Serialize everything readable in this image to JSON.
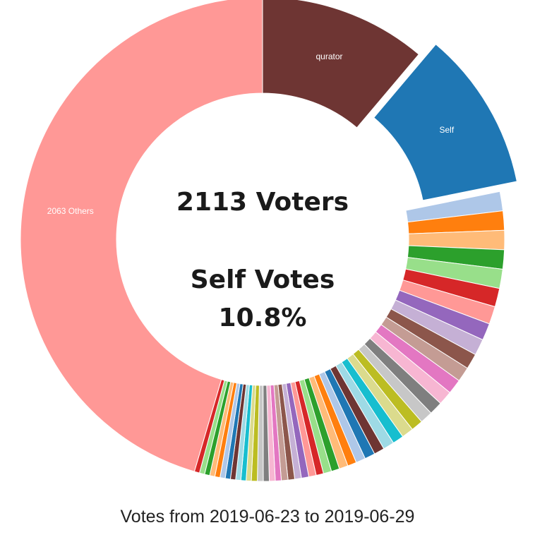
{
  "center": {
    "voters_text": "2113 Voters",
    "self_title": "Self Votes",
    "self_percent": "10.8%"
  },
  "footer": {
    "text": "Votes from 2019-06-23 to 2019-06-29"
  },
  "chart_data": {
    "type": "pie",
    "style": "donut",
    "labels": [
      "qurator",
      "Self",
      "2063 Others"
    ],
    "values": [
      {
        "label": "2063 Others",
        "value": 46.0,
        "color": "#ff9896"
      },
      {
        "label": "qurator",
        "value": 11.3,
        "color": "#6e3533"
      },
      {
        "label": "Self",
        "value": 10.8,
        "color": "#1f77b4",
        "offset": true
      }
    ],
    "small_slices": [
      {
        "value": 1.3,
        "color": "#aec7e8"
      },
      {
        "value": 1.3,
        "color": "#ff7f0e"
      },
      {
        "value": 1.3,
        "color": "#ffbb78"
      },
      {
        "value": 1.3,
        "color": "#2ca02c"
      },
      {
        "value": 1.3,
        "color": "#98df8a"
      },
      {
        "value": 1.25,
        "color": "#d62728"
      },
      {
        "value": 1.2,
        "color": "#ff9896"
      },
      {
        "value": 1.15,
        "color": "#9467bd"
      },
      {
        "value": 1.1,
        "color": "#c5b0d5"
      },
      {
        "value": 1.05,
        "color": "#8c564b"
      },
      {
        "value": 1.0,
        "color": "#c49c94"
      },
      {
        "value": 1.0,
        "color": "#e377c2"
      },
      {
        "value": 0.95,
        "color": "#f7b6d2"
      },
      {
        "value": 0.9,
        "color": "#7f7f7f"
      },
      {
        "value": 0.85,
        "color": "#c7c7c7"
      },
      {
        "value": 0.8,
        "color": "#bcbd22"
      },
      {
        "value": 0.8,
        "color": "#dbdb8d"
      },
      {
        "value": 0.75,
        "color": "#17becf"
      },
      {
        "value": 0.75,
        "color": "#9edae5"
      },
      {
        "value": 0.7,
        "color": "#6e3533"
      },
      {
        "value": 0.7,
        "color": "#1f77b4"
      },
      {
        "value": 0.65,
        "color": "#aec7e8"
      },
      {
        "value": 0.6,
        "color": "#ff7f0e"
      },
      {
        "value": 0.6,
        "color": "#ffbb78"
      },
      {
        "value": 0.55,
        "color": "#2ca02c"
      },
      {
        "value": 0.55,
        "color": "#98df8a"
      },
      {
        "value": 0.5,
        "color": "#d62728"
      },
      {
        "value": 0.5,
        "color": "#ff9896"
      },
      {
        "value": 0.5,
        "color": "#9467bd"
      },
      {
        "value": 0.45,
        "color": "#c5b0d5"
      },
      {
        "value": 0.45,
        "color": "#8c564b"
      },
      {
        "value": 0.45,
        "color": "#c49c94"
      },
      {
        "value": 0.4,
        "color": "#e377c2"
      },
      {
        "value": 0.4,
        "color": "#f7b6d2"
      },
      {
        "value": 0.4,
        "color": "#7f7f7f"
      },
      {
        "value": 0.4,
        "color": "#c7c7c7"
      },
      {
        "value": 0.4,
        "color": "#bcbd22"
      },
      {
        "value": 0.35,
        "color": "#dbdb8d"
      },
      {
        "value": 0.35,
        "color": "#17becf"
      },
      {
        "value": 0.35,
        "color": "#9edae5"
      },
      {
        "value": 0.35,
        "color": "#6e3533"
      },
      {
        "value": 0.35,
        "color": "#1f77b4"
      },
      {
        "value": 0.35,
        "color": "#aec7e8"
      },
      {
        "value": 0.35,
        "color": "#ff7f0e"
      },
      {
        "value": 0.35,
        "color": "#ffbb78"
      },
      {
        "value": 0.35,
        "color": "#2ca02c"
      },
      {
        "value": 0.35,
        "color": "#98df8a"
      },
      {
        "value": 0.35,
        "color": "#d62728"
      }
    ]
  }
}
